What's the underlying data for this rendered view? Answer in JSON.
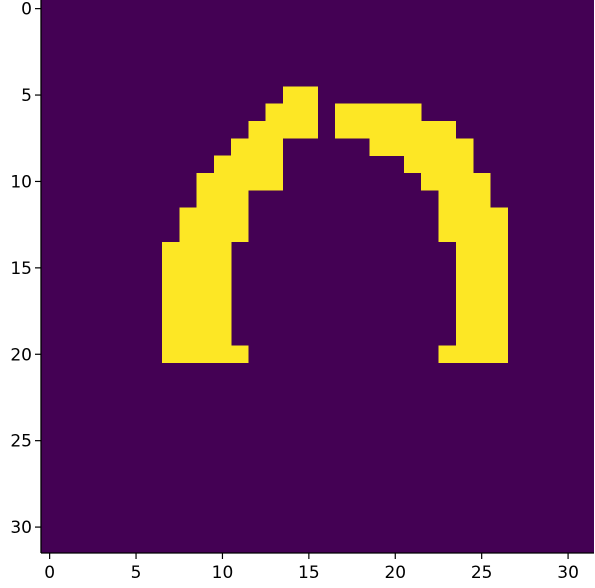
{
  "chart_data": {
    "type": "heatmap",
    "title": "",
    "xlabel": "",
    "ylabel": "",
    "shape": [
      32,
      32
    ],
    "xlim": [
      -0.5,
      31.5
    ],
    "ylim": [
      31.5,
      -0.5
    ],
    "xticks": [
      0,
      5,
      10,
      15,
      20,
      25,
      30
    ],
    "yticks": [
      0,
      5,
      10,
      15,
      20,
      25,
      30
    ],
    "grid": false,
    "colors": {
      "background": "#440154",
      "foreground": "#fde725"
    },
    "filled_rows": [
      {
        "y": 5,
        "ranges": [
          [
            14,
            15
          ]
        ]
      },
      {
        "y": 6,
        "ranges": [
          [
            13,
            15
          ],
          [
            17,
            21
          ]
        ]
      },
      {
        "y": 7,
        "ranges": [
          [
            12,
            15
          ],
          [
            17,
            23
          ]
        ]
      },
      {
        "y": 8,
        "ranges": [
          [
            11,
            13
          ],
          [
            19,
            24
          ]
        ]
      },
      {
        "y": 9,
        "ranges": [
          [
            10,
            13
          ],
          [
            21,
            24
          ]
        ]
      },
      {
        "y": 10,
        "ranges": [
          [
            9,
            13
          ],
          [
            22,
            25
          ]
        ]
      },
      {
        "y": 11,
        "ranges": [
          [
            9,
            11
          ],
          [
            23,
            25
          ]
        ]
      },
      {
        "y": 12,
        "ranges": [
          [
            8,
            11
          ],
          [
            23,
            26
          ]
        ]
      },
      {
        "y": 13,
        "ranges": [
          [
            8,
            11
          ],
          [
            23,
            26
          ]
        ]
      },
      {
        "y": 14,
        "ranges": [
          [
            7,
            10
          ],
          [
            24,
            26
          ]
        ]
      },
      {
        "y": 15,
        "ranges": [
          [
            7,
            10
          ],
          [
            24,
            26
          ]
        ]
      },
      {
        "y": 16,
        "ranges": [
          [
            7,
            10
          ],
          [
            24,
            26
          ]
        ]
      },
      {
        "y": 17,
        "ranges": [
          [
            7,
            10
          ],
          [
            24,
            26
          ]
        ]
      },
      {
        "y": 18,
        "ranges": [
          [
            7,
            10
          ],
          [
            24,
            26
          ]
        ]
      },
      {
        "y": 19,
        "ranges": [
          [
            7,
            10
          ],
          [
            24,
            26
          ]
        ]
      },
      {
        "y": 20,
        "ranges": [
          [
            7,
            11
          ],
          [
            23,
            26
          ]
        ]
      }
    ]
  }
}
